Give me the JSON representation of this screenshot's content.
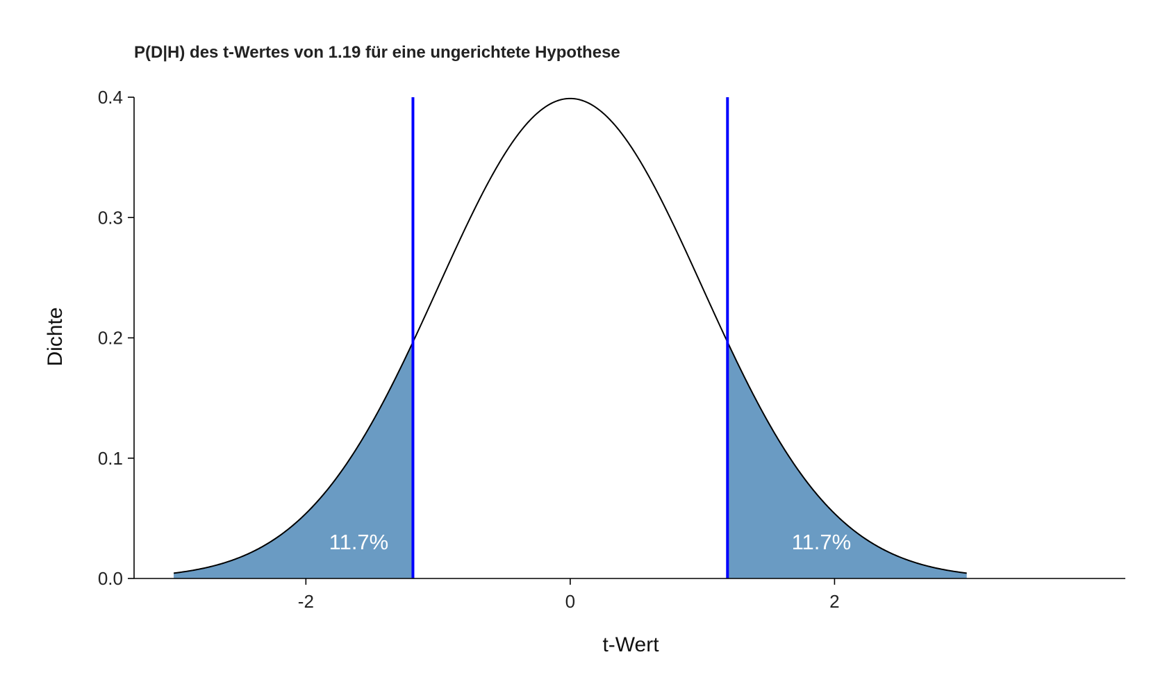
{
  "chart_data": {
    "type": "area",
    "title": "P(D|H) des t-Wertes von 1.19 für eine ungerichtete Hypothese",
    "xlabel": "t-Wert",
    "ylabel": "Dichte",
    "xlim": [
      -3.3,
      4.2
    ],
    "ylim": [
      0,
      0.4
    ],
    "x_range_curve": [
      -3,
      3
    ],
    "x_ticks": [
      -2,
      0,
      2
    ],
    "x_tick_labels": [
      "-2",
      "0",
      "2"
    ],
    "y_ticks": [
      0,
      0.1,
      0.2,
      0.3,
      0.4
    ],
    "y_tick_labels": [
      "0.0",
      "0.1",
      "0.2",
      "0.3",
      "0.4"
    ],
    "distribution": "standard normal density",
    "critical_lines": [
      -1.19,
      1.19
    ],
    "shaded_regions": [
      {
        "from": -3,
        "to": -1.19,
        "label": "11.7%",
        "label_x": -1.6,
        "label_y": 0.03
      },
      {
        "from": 1.19,
        "to": 3,
        "label": "11.7%",
        "label_x": 1.9,
        "label_y": 0.03
      }
    ],
    "colors": {
      "fill": "#6A9BC3",
      "line": "#000000",
      "critical": "#0000FF",
      "region_label": "#FFFFFF"
    },
    "grid": false,
    "legend": "none"
  }
}
